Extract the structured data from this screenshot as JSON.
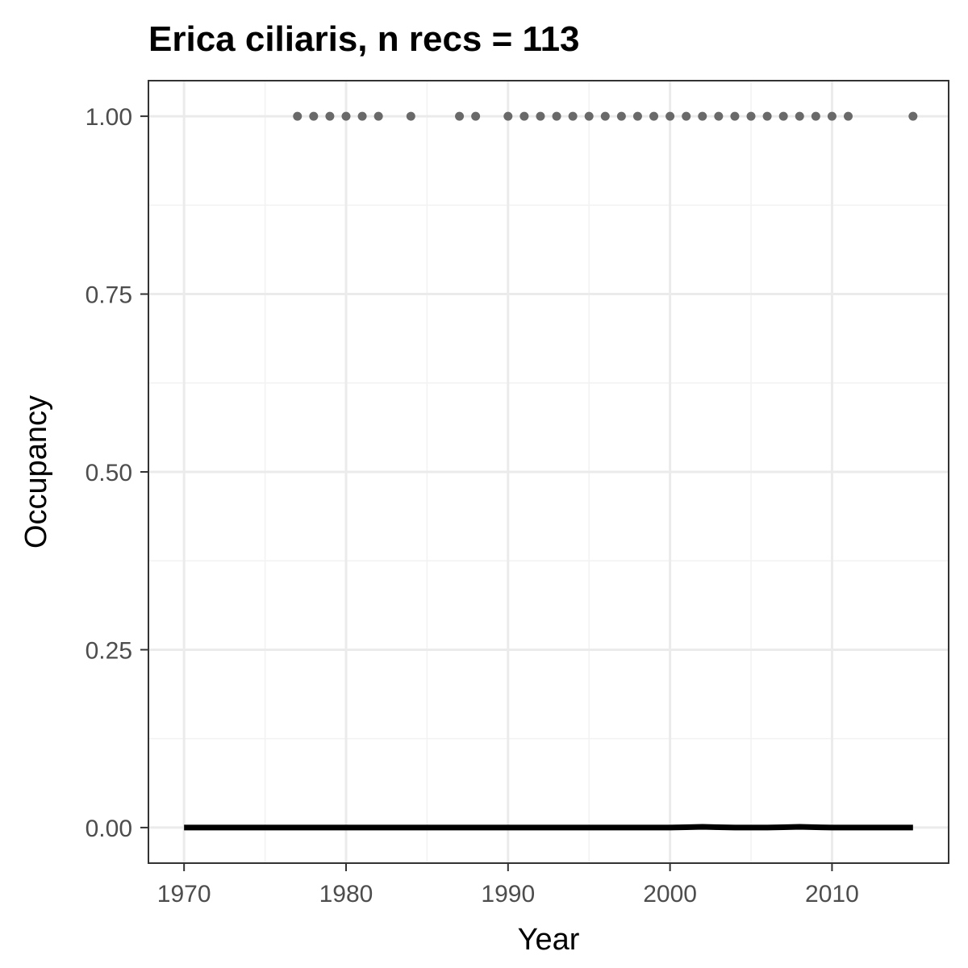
{
  "chart_data": {
    "type": "scatter",
    "title": "Erica ciliaris, n recs = 113",
    "xlabel": "Year",
    "ylabel": "Occupancy",
    "xlim": [
      1967.8,
      2017.2
    ],
    "ylim": [
      -0.05,
      1.05
    ],
    "x_ticks": [
      1970,
      1980,
      1990,
      2000,
      2010
    ],
    "x_tick_labels": [
      "1970",
      "1980",
      "1990",
      "2000",
      "2010"
    ],
    "y_ticks": [
      0,
      0.25,
      0.5,
      0.75,
      1.0
    ],
    "y_tick_labels": [
      "0.00",
      "0.25",
      "0.50",
      "0.75",
      "1.00"
    ],
    "grid": true,
    "legend": "none",
    "points": {
      "color": "#696969",
      "x": [
        1977,
        1978,
        1979,
        1980,
        1981,
        1982,
        1984,
        1987,
        1988,
        1990,
        1991,
        1992,
        1993,
        1994,
        1995,
        1996,
        1997,
        1998,
        1999,
        2000,
        2001,
        2002,
        2003,
        2004,
        2005,
        2006,
        2007,
        2008,
        2009,
        2010,
        2011,
        2015
      ],
      "y": [
        1,
        1,
        1,
        1,
        1,
        1,
        1,
        1,
        1,
        1,
        1,
        1,
        1,
        1,
        1,
        1,
        1,
        1,
        1,
        1,
        1,
        1,
        1,
        1,
        1,
        1,
        1,
        1,
        1,
        1,
        1,
        1
      ]
    },
    "trend": {
      "color": "#000000",
      "x": [
        1970,
        1975,
        1980,
        1985,
        1990,
        1995,
        2000,
        2001,
        2002,
        2003,
        2004,
        2005,
        2006,
        2007,
        2008,
        2009,
        2010,
        2015
      ],
      "y": [
        0,
        0,
        0,
        0,
        0,
        0,
        0,
        0.0005,
        0.001,
        0.0005,
        0,
        0,
        0,
        0.0005,
        0.001,
        0.0005,
        0,
        0
      ]
    }
  }
}
